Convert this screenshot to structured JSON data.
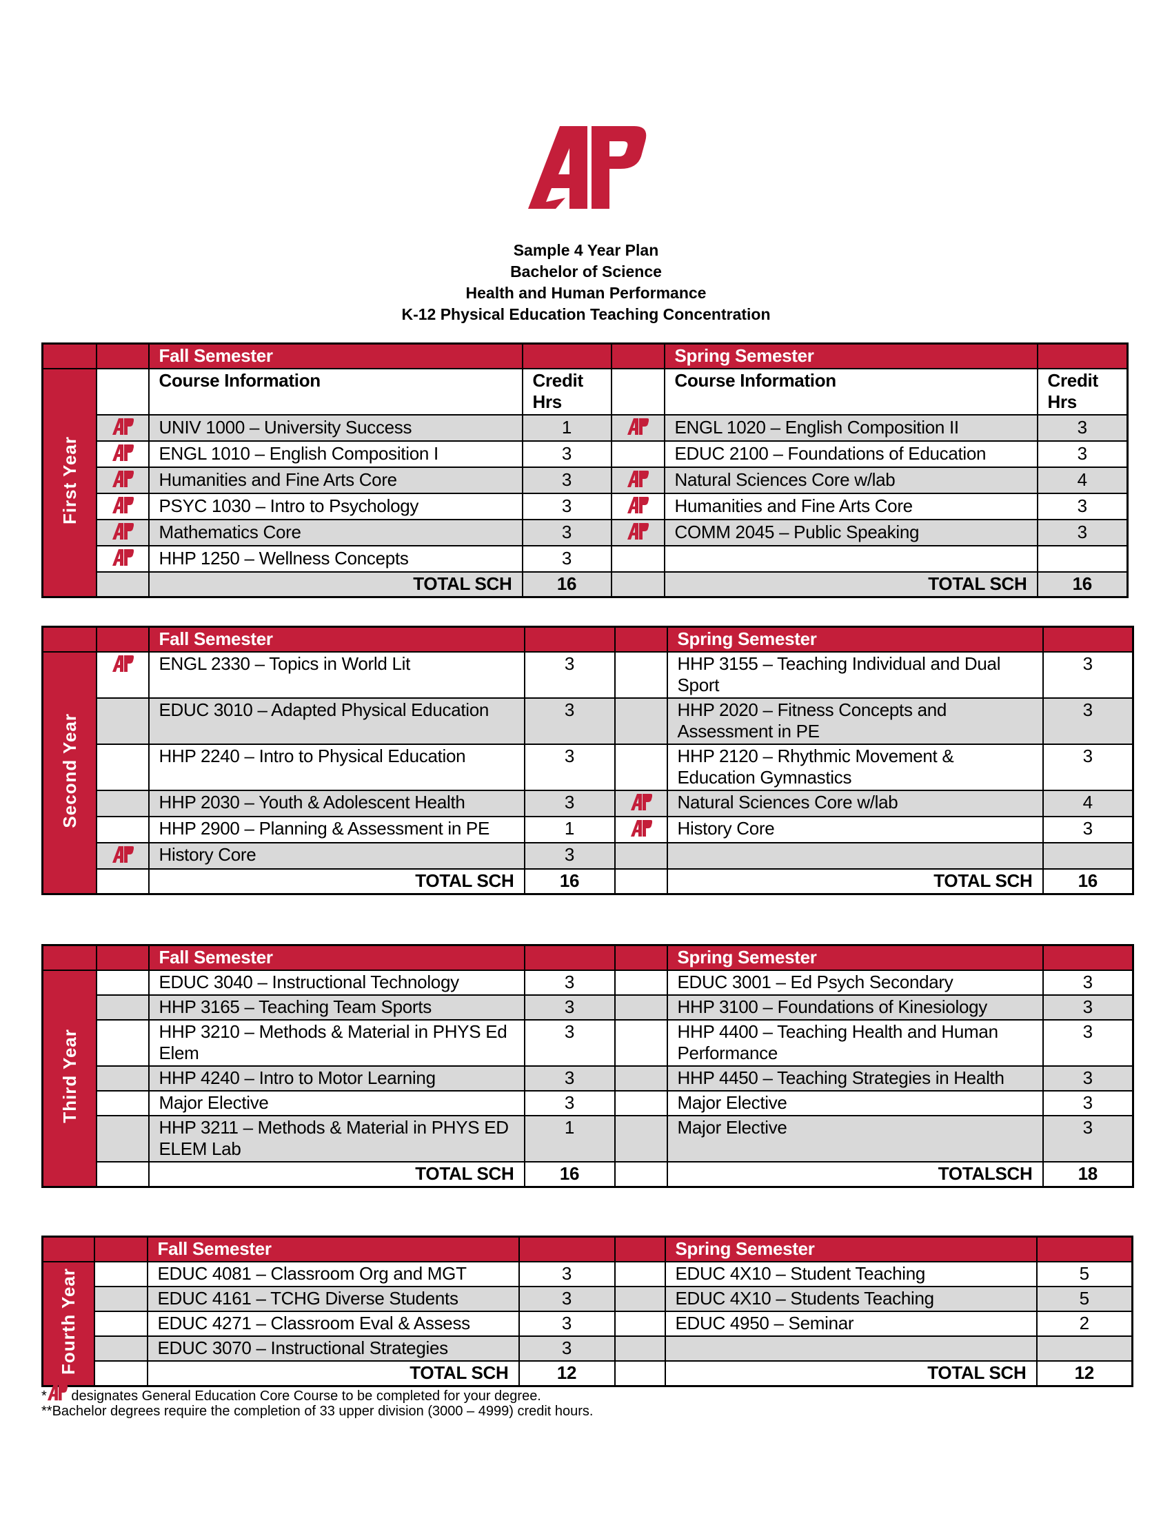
{
  "logo_text": "AP",
  "titles": [
    "Sample 4 Year Plan",
    "Bachelor of Science",
    "Health and Human Performance",
    "K-12 Physical Education Teaching Concentration"
  ],
  "colors": {
    "accent": "#C41E3A",
    "shade": "#D9D9D9"
  },
  "core_icon": "ap-logo-icon",
  "years": [
    {
      "label": "First Year",
      "fall_title": "Fall Semester",
      "spring_title": "Spring Semester",
      "column_headers": {
        "course": "Course Information",
        "credit": "Credit Hrs"
      },
      "rows": [
        {
          "shaded": true,
          "fall": {
            "core": true,
            "course": "UNIV 1000 – University Success",
            "credit": "1"
          },
          "spring": {
            "core": true,
            "course": "ENGL 1020 – English Composition II",
            "credit": "3"
          }
        },
        {
          "shaded": false,
          "fall": {
            "core": true,
            "course": "ENGL 1010 – English Composition I",
            "credit": "3"
          },
          "spring": {
            "core": false,
            "course": "EDUC 2100 – Foundations of Education",
            "credit": "3"
          }
        },
        {
          "shaded": true,
          "fall": {
            "core": true,
            "course": "Humanities and Fine Arts Core",
            "credit": "3"
          },
          "spring": {
            "core": true,
            "course": "Natural Sciences Core w/lab",
            "credit": "4"
          }
        },
        {
          "shaded": false,
          "fall": {
            "core": true,
            "course": "PSYC 1030 – Intro to Psychology",
            "credit": "3"
          },
          "spring": {
            "core": true,
            "course": "Humanities and Fine Arts Core",
            "credit": "3"
          }
        },
        {
          "shaded": true,
          "fall": {
            "core": true,
            "course": "Mathematics Core",
            "credit": "3"
          },
          "spring": {
            "core": true,
            "course": "COMM 2045 – Public Speaking",
            "credit": "3"
          }
        },
        {
          "shaded": false,
          "fall": {
            "core": true,
            "course": "HHP 1250 – Wellness Concepts",
            "credit": "3"
          },
          "spring": {
            "core": false,
            "course": "",
            "credit": ""
          }
        }
      ],
      "total_shaded": true,
      "fall_total_label": "TOTAL SCH",
      "fall_total": "16",
      "spring_total_label": "TOTAL SCH",
      "spring_total": "16"
    },
    {
      "label": "Second Year",
      "fall_title": "Fall Semester",
      "spring_title": "Spring Semester",
      "rows": [
        {
          "shaded": false,
          "fall": {
            "core": true,
            "course": "ENGL 2330 – Topics in World Lit",
            "credit": "3"
          },
          "spring": {
            "core": false,
            "course": "HHP 3155 – Teaching Individual and Dual Sport",
            "credit": "3"
          }
        },
        {
          "shaded": true,
          "fall": {
            "core": false,
            "course": "EDUC 3010 – Adapted Physical Education",
            "credit": "3"
          },
          "spring": {
            "core": false,
            "course": "HHP 2020 – Fitness Concepts and Assessment in PE",
            "credit": "3"
          }
        },
        {
          "shaded": false,
          "fall": {
            "core": false,
            "course": "HHP 2240 – Intro to Physical Education",
            "credit": "3"
          },
          "spring": {
            "core": false,
            "course": "HHP 2120 – Rhythmic Movement & Education Gymnastics",
            "credit": "3"
          }
        },
        {
          "shaded": true,
          "fall": {
            "core": false,
            "course": "HHP 2030 – Youth & Adolescent Health",
            "credit": "3"
          },
          "spring": {
            "core": true,
            "course": "Natural Sciences Core w/lab",
            "credit": "4"
          }
        },
        {
          "shaded": false,
          "fall": {
            "core": false,
            "course": "HHP 2900 – Planning & Assessment in PE",
            "credit": "1"
          },
          "spring": {
            "core": true,
            "course": "History Core",
            "credit": "3"
          }
        },
        {
          "shaded": true,
          "fall": {
            "core": true,
            "course": "History Core",
            "credit": "3"
          },
          "spring": {
            "core": false,
            "course": "",
            "credit": ""
          }
        }
      ],
      "total_shaded": false,
      "fall_total_label": "TOTAL SCH",
      "fall_total": "16",
      "spring_total_label": "TOTAL SCH",
      "spring_total": "16"
    },
    {
      "label": "Third Year",
      "fall_title": "Fall Semester",
      "spring_title": "Spring Semester",
      "rows": [
        {
          "shaded": false,
          "fall": {
            "core": false,
            "course": "EDUC 3040 – Instructional Technology",
            "credit": "3"
          },
          "spring": {
            "core": false,
            "course": "EDUC 3001 – Ed Psych Secondary",
            "credit": "3"
          }
        },
        {
          "shaded": true,
          "fall": {
            "core": false,
            "course": "HHP 3165 – Teaching Team Sports",
            "credit": "3"
          },
          "spring": {
            "core": false,
            "course": "HHP 3100 – Foundations of Kinesiology",
            "credit": "3"
          }
        },
        {
          "shaded": false,
          "fall": {
            "core": false,
            "course": "HHP 3210 – Methods & Material in PHYS Ed Elem",
            "credit": "3"
          },
          "spring": {
            "core": false,
            "course": "HHP 4400 – Teaching Health and Human Performance",
            "credit": "3"
          }
        },
        {
          "shaded": true,
          "fall": {
            "core": false,
            "course": "HHP 4240 – Intro to Motor Learning",
            "credit": "3"
          },
          "spring": {
            "core": false,
            "course": "HHP 4450 – Teaching Strategies in Health",
            "credit": "3"
          }
        },
        {
          "shaded": false,
          "fall": {
            "core": false,
            "course": "Major Elective",
            "credit": "3"
          },
          "spring": {
            "core": false,
            "course": "Major Elective",
            "credit": "3"
          }
        },
        {
          "shaded": true,
          "fall": {
            "core": false,
            "course": "HHP 3211 – Methods & Material in PHYS ED ELEM Lab",
            "credit": "1"
          },
          "spring": {
            "core": false,
            "course": "Major Elective",
            "credit": "3"
          }
        }
      ],
      "total_shaded": false,
      "fall_total_label": "TOTAL SCH",
      "fall_total": "16",
      "spring_total_label": "TOTALSCH",
      "spring_total": "18"
    },
    {
      "label": "Fourth Year",
      "fall_title": "Fall Semester",
      "spring_title": "Spring Semester",
      "rows": [
        {
          "shaded": false,
          "fall": {
            "core": false,
            "course": "EDUC 4081 – Classroom Org and MGT",
            "credit": "3"
          },
          "spring": {
            "core": false,
            "course": "EDUC 4X10 – Student Teaching",
            "credit": "5"
          }
        },
        {
          "shaded": true,
          "fall": {
            "core": false,
            "course": "EDUC 4161 – TCHG Diverse Students",
            "credit": "3"
          },
          "spring": {
            "core": false,
            "course": "EDUC 4X10 – Students Teaching",
            "credit": "5"
          }
        },
        {
          "shaded": false,
          "fall": {
            "core": false,
            "course": "EDUC 4271 – Classroom Eval & Assess",
            "credit": "3"
          },
          "spring": {
            "core": false,
            "course": "EDUC 4950 – Seminar",
            "credit": "2"
          }
        },
        {
          "shaded": true,
          "fall": {
            "core": false,
            "course": "EDUC 3070 – Instructional Strategies",
            "credit": "3"
          },
          "spring": {
            "core": false,
            "course": "",
            "credit": ""
          }
        }
      ],
      "total_shaded": false,
      "fall_total_label": "TOTAL SCH",
      "fall_total": "12",
      "spring_total_label": "TOTAL SCH",
      "spring_total": "12"
    }
  ],
  "footnotes": {
    "core_prefix": "*",
    "core_note": " designates General Education Core Course to be completed for your degree.",
    "upper_division_note": "**Bachelor degrees require the completion of 33 upper division (3000 – 4999) credit hours."
  }
}
